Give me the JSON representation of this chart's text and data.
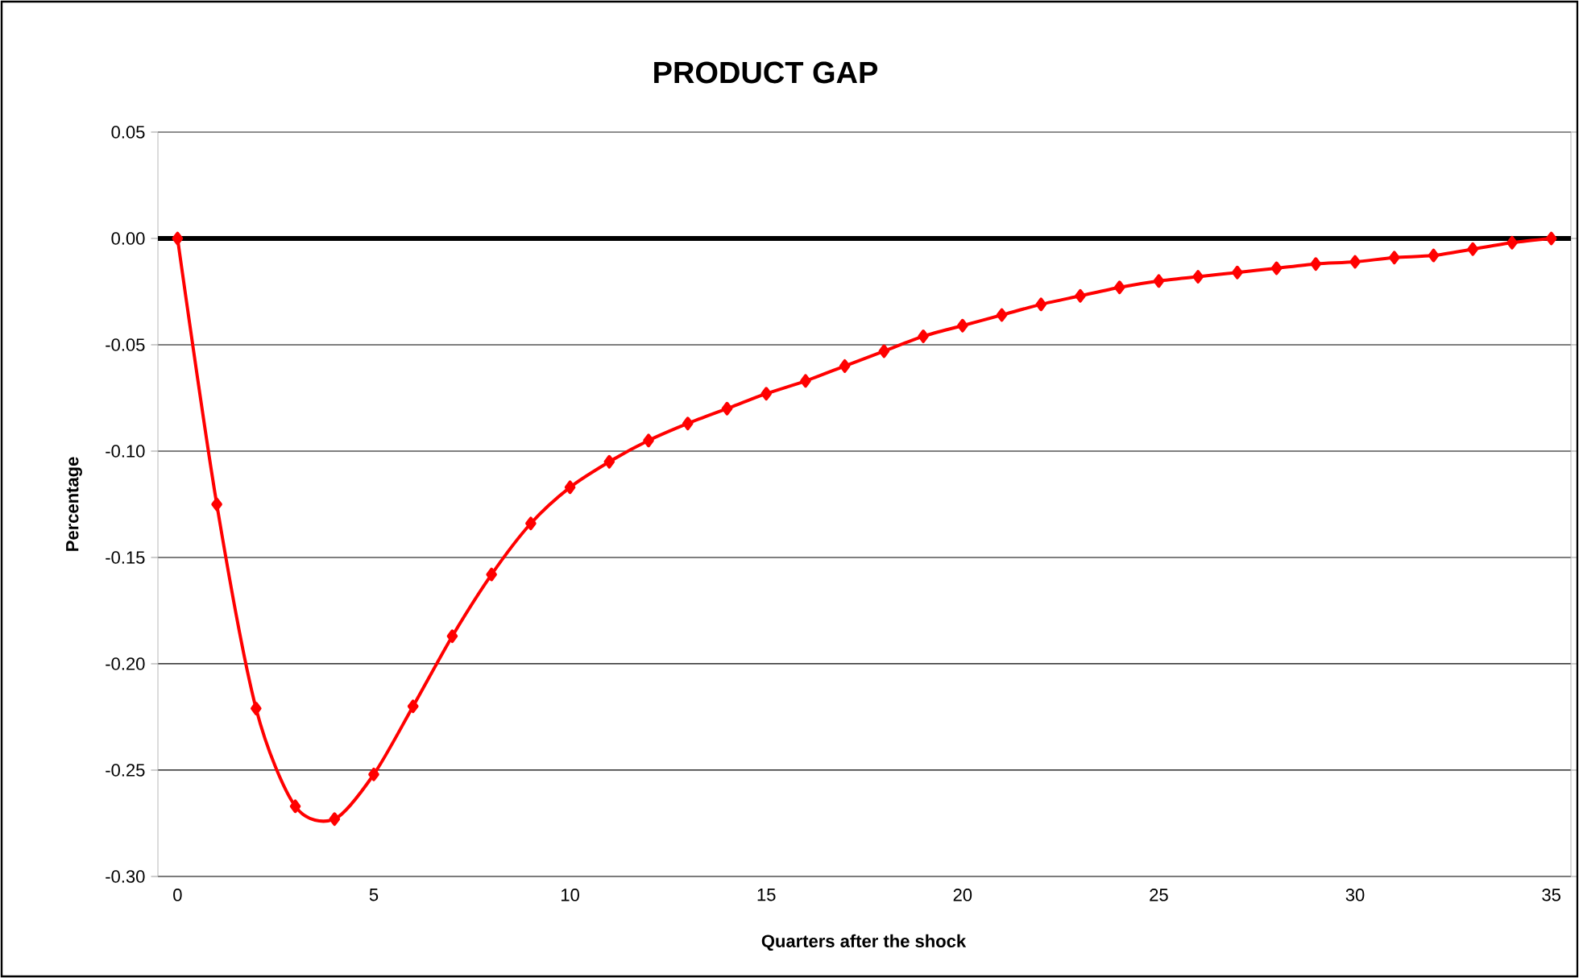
{
  "chart_data": {
    "type": "line",
    "title": "PRODUCT GAP",
    "xlabel": "Quarters after the shock",
    "ylabel": "Percentage",
    "x": [
      0,
      1,
      2,
      3,
      4,
      5,
      6,
      7,
      8,
      9,
      10,
      11,
      12,
      13,
      14,
      15,
      16,
      17,
      18,
      19,
      20,
      21,
      22,
      23,
      24,
      25,
      26,
      27,
      28,
      29,
      30,
      31,
      32,
      33,
      34,
      35
    ],
    "series": [
      {
        "color": "#ff0000",
        "values": [
          0,
          -0.125,
          -0.221,
          -0.267,
          -0.273,
          -0.252,
          -0.22,
          -0.187,
          -0.158,
          -0.134,
          -0.117,
          -0.105,
          -0.095,
          -0.087,
          -0.08,
          -0.073,
          -0.067,
          -0.06,
          -0.053,
          -0.046,
          -0.041,
          -0.036,
          -0.031,
          -0.027,
          -0.023,
          -0.02,
          -0.018,
          -0.016,
          -0.014,
          -0.012,
          -0.011,
          -0.009,
          -0.008,
          -0.005,
          -0.002,
          0
        ]
      }
    ],
    "xlim": [
      -0.5,
      35.5
    ],
    "xticks": [
      0,
      5,
      10,
      15,
      20,
      25,
      30,
      35
    ],
    "ylim": [
      -0.3,
      0.05
    ],
    "yticks": [
      {
        "value": -0.3,
        "label": "-0.30"
      },
      {
        "value": -0.25,
        "label": "-0.25"
      },
      {
        "value": -0.2,
        "label": "-0.20"
      },
      {
        "value": -0.15,
        "label": "-0.15"
      },
      {
        "value": -0.1,
        "label": "-0.10"
      },
      {
        "value": -0.05,
        "label": "-0.05"
      },
      {
        "value": 0,
        "label": "0.00"
      },
      {
        "value": 0.05,
        "label": "0.05"
      }
    ],
    "ref_lines": [
      {
        "axis": "y",
        "value": 0,
        "color": "#000000"
      }
    ],
    "grid": "y",
    "marker": "diamond",
    "line_style": "solid"
  }
}
